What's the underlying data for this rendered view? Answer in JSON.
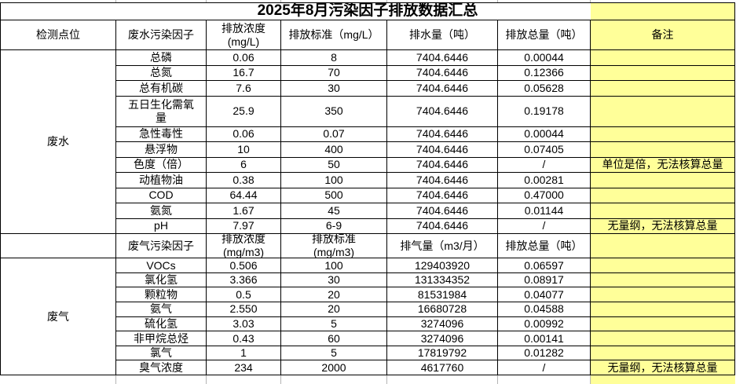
{
  "title": "2025年8月污染因子排放数据汇总",
  "colors": {
    "remark_highlight": "#FFFF99",
    "grid_border": "#000000"
  },
  "wastewater": {
    "section_label": "废水",
    "headers": {
      "point": "检测点位",
      "factor": "废水污染因子",
      "concentration": "排放浓度\n(mg/L)",
      "standard": "排放标准（mg/L）",
      "volume": "排水量（吨）",
      "total": "排放总量（吨）",
      "remark": "备注"
    },
    "rows": [
      {
        "factor": "总磷",
        "concentration": "0.06",
        "standard": "8",
        "volume": "7404.6446",
        "total": "0.00044",
        "remark": ""
      },
      {
        "factor": "总氮",
        "concentration": "16.7",
        "standard": "70",
        "volume": "7404.6446",
        "total": "0.12366",
        "remark": ""
      },
      {
        "factor": "总有机碳",
        "concentration": "7.6",
        "standard": "30",
        "volume": "7404.6446",
        "total": "0.05628",
        "remark": ""
      },
      {
        "factor": "五日生化需氧量",
        "concentration": "25.9",
        "standard": "350",
        "volume": "7404.6446",
        "total": "0.19178",
        "remark": ""
      },
      {
        "factor": "急性毒性",
        "concentration": "0.06",
        "standard": "0.07",
        "volume": "7404.6446",
        "total": "0.00044",
        "remark": ""
      },
      {
        "factor": "悬浮物",
        "concentration": "10",
        "standard": "400",
        "volume": "7404.6446",
        "total": "0.07405",
        "remark": ""
      },
      {
        "factor": "色度（倍）",
        "concentration": "6",
        "standard": "50",
        "volume": "7404.6446",
        "total": "/",
        "remark": "单位是倍，无法核算总量"
      },
      {
        "factor": "动植物油",
        "concentration": "0.38",
        "standard": "100",
        "volume": "7404.6446",
        "total": "0.00281",
        "remark": ""
      },
      {
        "factor": "COD",
        "concentration": "64.44",
        "standard": "500",
        "volume": "7404.6446",
        "total": "0.47000",
        "remark": ""
      },
      {
        "factor": "氨氮",
        "concentration": "1.67",
        "standard": "45",
        "volume": "7404.6446",
        "total": "0.01144",
        "remark": ""
      },
      {
        "factor": "pH",
        "concentration": "7.97",
        "standard": "6-9",
        "volume": "7404.6446",
        "total": "/",
        "remark": "无量纲，无法核算总量"
      }
    ]
  },
  "gas": {
    "section_label": "废气",
    "headers": {
      "point": "",
      "factor": "废气污染因子",
      "concentration": "排放浓度\n(mg/m3)",
      "standard": "排放标准\n(mg/m3)",
      "volume": "排气量（m3/月）",
      "total": "排放总量（吨）",
      "remark": ""
    },
    "rows": [
      {
        "factor": "VOCs",
        "concentration": "0.506",
        "standard": "100",
        "volume": "129403920",
        "total": "0.06597",
        "remark": ""
      },
      {
        "factor": "氯化氢",
        "concentration": "3.366",
        "standard": "30",
        "volume": "131334352",
        "total": "0.08917",
        "remark": ""
      },
      {
        "factor": "颗粒物",
        "concentration": "0.5",
        "standard": "20",
        "volume": "81531984",
        "total": "0.04077",
        "remark": ""
      },
      {
        "factor": "氨气",
        "concentration": "2.550",
        "standard": "20",
        "volume": "16680728",
        "total": "0.04588",
        "remark": ""
      },
      {
        "factor": "硫化氢",
        "concentration": "3.03",
        "standard": "5",
        "volume": "3274096",
        "total": "0.00992",
        "remark": ""
      },
      {
        "factor": "非甲烷总烃",
        "concentration": "0.43",
        "standard": "60",
        "volume": "3274096",
        "total": "0.00141",
        "remark": ""
      },
      {
        "factor": "氯气",
        "concentration": "1",
        "standard": "5",
        "volume": "17819792",
        "total": "0.01282",
        "remark": ""
      },
      {
        "factor": "臭气浓度",
        "concentration": "234",
        "standard": "2000",
        "volume": "4617760",
        "total": "/",
        "remark": "无量纲，无法核算总量"
      }
    ]
  }
}
